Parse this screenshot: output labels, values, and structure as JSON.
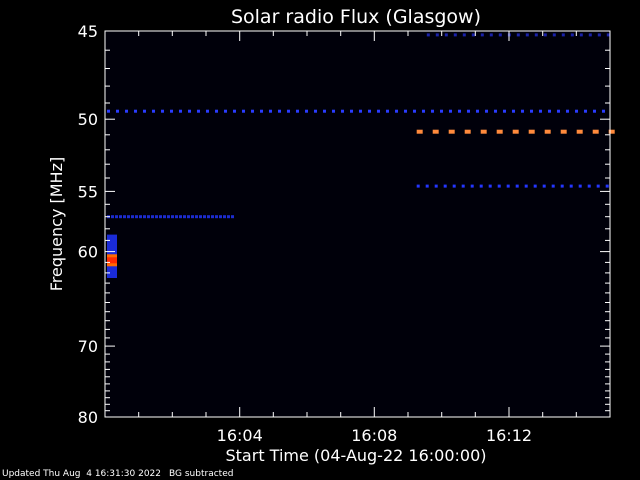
{
  "chart_data": {
    "type": "heatmap",
    "title": "Solar radio Flux (Glasgow)",
    "xlabel": "Start Time (04-Aug-22 16:00:00)",
    "ylabel": "Frequency [MHz]",
    "x_unit": "minutes after 16:00:00",
    "xlim": [
      0,
      15
    ],
    "ylim": [
      45,
      80
    ],
    "y_scale": "reciprocal",
    "x_ticks": [
      {
        "value": 4,
        "label": "16:04"
      },
      {
        "value": 8,
        "label": "16:08"
      },
      {
        "value": 12,
        "label": "16:12"
      }
    ],
    "y_ticks": [
      {
        "value": 45,
        "label": "45"
      },
      {
        "value": 50,
        "label": "50"
      },
      {
        "value": 55,
        "label": "55"
      },
      {
        "value": 60,
        "label": "60"
      },
      {
        "value": 70,
        "label": "70"
      },
      {
        "value": 80,
        "label": "80"
      }
    ],
    "grid": false,
    "background_color": "#00000a",
    "features": [
      {
        "kind": "dashed_line",
        "y": 49.5,
        "x_range": [
          0,
          15
        ],
        "color": "#2a3cff",
        "intensity": "low"
      },
      {
        "kind": "dashed_line",
        "y": 45.2,
        "x_range": [
          9.5,
          15
        ],
        "color": "#1a22aa",
        "intensity": "low"
      },
      {
        "kind": "dashed_line",
        "y": 50.8,
        "x_range": [
          9.2,
          15
        ],
        "color": "#ff8a3c",
        "intensity": "high"
      },
      {
        "kind": "dashed_line",
        "y": 54.6,
        "x_range": [
          9.2,
          15
        ],
        "color": "#2436ff",
        "intensity": "medium"
      },
      {
        "kind": "band",
        "y": 57.0,
        "x_range": [
          0,
          3.8
        ],
        "color": "#1c2cd0",
        "intensity": "low"
      },
      {
        "kind": "burst",
        "x": 0.15,
        "y_range": [
          58.5,
          62.5
        ],
        "peak_y": 60.8,
        "color": "#ff2a00",
        "intensity": "high"
      }
    ]
  },
  "footer": {
    "updated": "Updated Thu Aug  4 16:31:30 2022",
    "note": "BG subtracted"
  }
}
